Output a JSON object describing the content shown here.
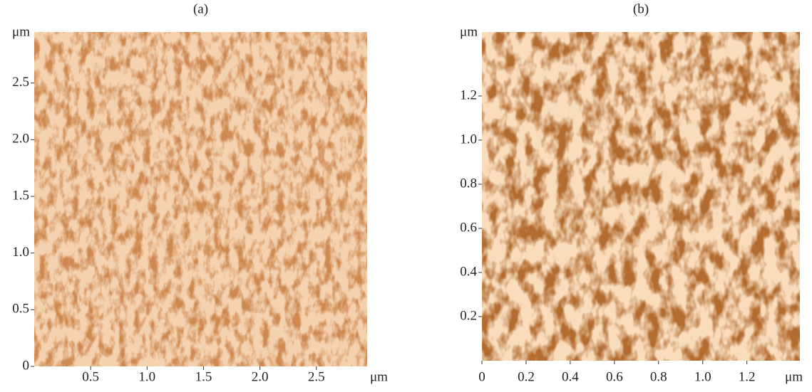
{
  "panels": [
    {
      "title": "(a)",
      "y_unit": "μm",
      "x_unit": "μm",
      "xlim": [
        0,
        2.95
      ],
      "ylim": [
        0,
        2.95
      ],
      "xticks": [
        0.5,
        {
          "value": 1,
          "label": "1.0"
        },
        1.5,
        {
          "value": 2,
          "label": "2.0"
        },
        2.5
      ],
      "yticks": [
        0,
        0.5,
        {
          "value": 1,
          "label": "1.0"
        },
        1.5,
        {
          "value": 2,
          "label": "2.0"
        },
        2.5
      ]
    },
    {
      "title": "(b)",
      "y_unit": "μm",
      "x_unit": "μm",
      "xlim": [
        0,
        1.44
      ],
      "ylim": [
        0,
        1.49
      ],
      "xticks": [
        0,
        0.2,
        0.4,
        0.6,
        0.8,
        {
          "value": 1,
          "label": "1.0"
        },
        1.2
      ],
      "yticks": [
        0.2,
        0.4,
        0.6,
        0.8,
        {
          "value": 1,
          "label": "1.0"
        },
        1.2
      ]
    }
  ]
}
